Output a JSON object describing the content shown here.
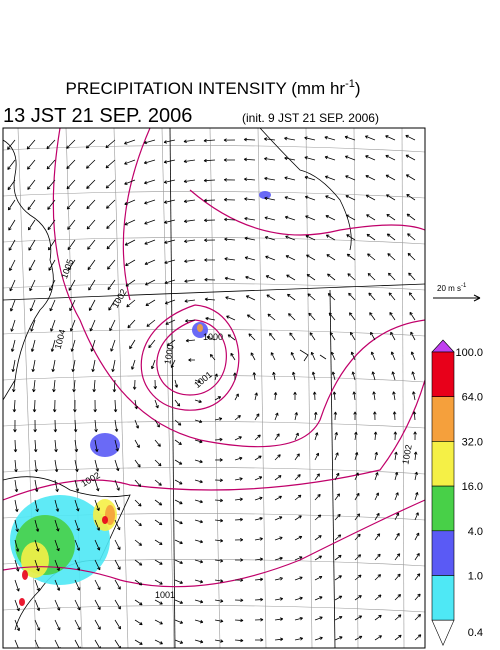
{
  "header": {
    "title": "PRECIPITATION INTENSITY (mm hr",
    "title_sup": "-1",
    "title_end": ")",
    "time": "13 JST 21 SEP. 2006",
    "init": "(init. 9 JST 21 SEP. 2006)"
  },
  "vector_scale": {
    "label": "20 m s",
    "sup": "-1"
  },
  "colorbar": {
    "labels": [
      "100.0",
      "64.0",
      "32.0",
      "16.0",
      "4.0",
      "1.0",
      "0.4"
    ],
    "colors": [
      "#e8001a",
      "#f5a03c",
      "#f5f046",
      "#48d048",
      "#5a5af5",
      "#4ee8f5"
    ],
    "over_color": "#c040f0",
    "under_color": "#ffffff"
  },
  "contour_labels": [
    "1005",
    "1004",
    "1002",
    "1000",
    "1001",
    "1000",
    "1002",
    "1002",
    "1001"
  ]
}
